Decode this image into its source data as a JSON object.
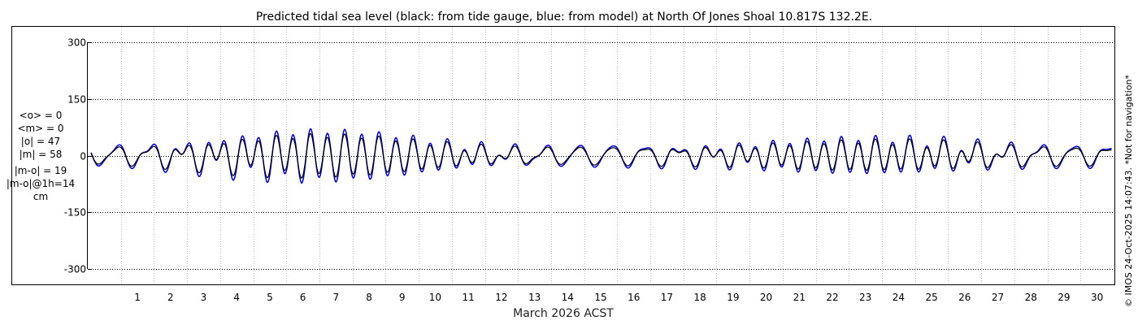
{
  "chart_data": {
    "type": "line",
    "title": "Predicted tidal sea level (black: from tide gauge, blue: from model) at North Of Jones Shoal 10.817S 132.2E.",
    "xlabel": "March 2026 ACST",
    "ylabel": "",
    "xlim": [
      0,
      31
    ],
    "ylim": [
      -340,
      340
    ],
    "yticks": [
      300,
      150,
      0,
      -150,
      -300
    ],
    "xticks": [
      "1",
      "2",
      "3",
      "4",
      "5",
      "6",
      "7",
      "8",
      "9",
      "10",
      "11",
      "12",
      "13",
      "14",
      "15",
      "16",
      "17",
      "18",
      "19",
      "20",
      "21",
      "22",
      "23",
      "24",
      "25",
      "26",
      "27",
      "28",
      "29",
      "30"
    ],
    "grid": true,
    "units": "cm",
    "series": [
      {
        "name": "tide gauge",
        "color": "#000000",
        "values": []
      },
      {
        "name": "model",
        "color": "#0000cc",
        "values": []
      }
    ]
  },
  "stats": [
    "<o> = 0",
    "<m> = 0",
    "|o| = 47",
    "|m| = 58",
    "|m-o| = 19",
    "|m-o|@1h=14",
    "cm"
  ],
  "credit": "© IMOS 24-Oct-2025 14:07:43. *Not for navigation*"
}
